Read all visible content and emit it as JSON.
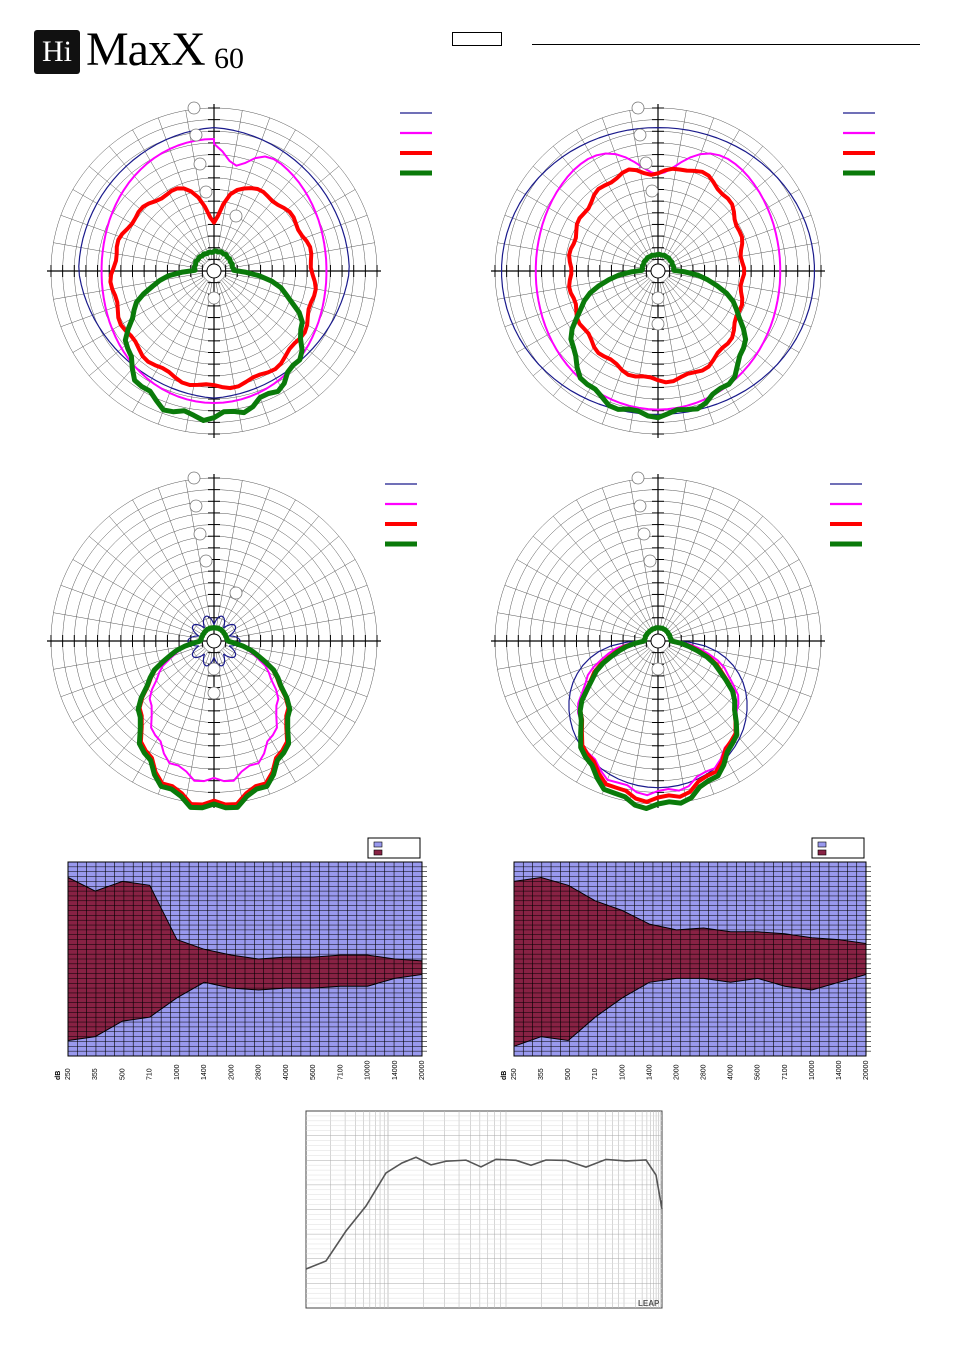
{
  "logo": {
    "badge": "Hi",
    "name": "MaxX",
    "model": "60"
  },
  "colors": {
    "c1": "#1a1a8c",
    "c2": "#ff00ff",
    "c3": "#ff0000",
    "c4": "#0a7a0a",
    "band_bg": "#9999ee",
    "band_fill": "#882244"
  },
  "chart_data": [
    {
      "type": "polar",
      "panel": "top-left",
      "series_colors": [
        "#1a1a8c",
        "#ff00ff",
        "#ff0000",
        "#0a7a0a"
      ]
    },
    {
      "type": "polar",
      "panel": "top-right",
      "series_colors": [
        "#1a1a8c",
        "#ff00ff",
        "#ff0000",
        "#0a7a0a"
      ]
    },
    {
      "type": "polar",
      "panel": "middle-left",
      "series_colors": [
        "#1a1a8c",
        "#ff00ff",
        "#ff0000",
        "#0a7a0a"
      ]
    },
    {
      "type": "polar",
      "panel": "middle-right",
      "series_colors": [
        "#1a1a8c",
        "#ff00ff",
        "#ff0000",
        "#0a7a0a"
      ]
    },
    {
      "type": "area",
      "panel": "dispersion-left",
      "ylabel": "dB",
      "categories": [
        "250",
        "355",
        "500",
        "710",
        "1000",
        "1400",
        "2000",
        "2800",
        "4000",
        "5600",
        "7100",
        "10000",
        "14000",
        "20000"
      ],
      "upper": [
        92,
        85,
        90,
        88,
        60,
        55,
        52,
        50,
        51,
        51,
        52,
        52,
        50,
        49
      ],
      "lower": [
        8,
        10,
        18,
        20,
        30,
        38,
        35,
        34,
        35,
        35,
        36,
        36,
        40,
        42
      ]
    },
    {
      "type": "area",
      "panel": "dispersion-right",
      "ylabel": "dB",
      "categories": [
        "250",
        "355",
        "500",
        "710",
        "1000",
        "1400",
        "2000",
        "2800",
        "4000",
        "5600",
        "7100",
        "10000",
        "14000",
        "20000"
      ],
      "upper": [
        90,
        92,
        88,
        80,
        75,
        68,
        65,
        66,
        64,
        64,
        63,
        61,
        60,
        58
      ],
      "lower": [
        5,
        10,
        8,
        20,
        30,
        38,
        40,
        40,
        38,
        40,
        36,
        34,
        38,
        42
      ]
    },
    {
      "type": "line",
      "panel": "frequency-response",
      "footer": "LEAP"
    }
  ]
}
